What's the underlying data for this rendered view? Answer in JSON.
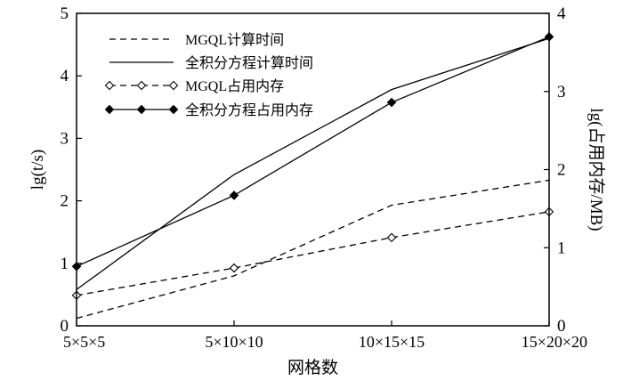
{
  "chart_data": {
    "type": "line",
    "categories": [
      "5×5×5",
      "5×10×10",
      "10×15×15",
      "15×20×20"
    ],
    "xlabel": "网格数",
    "ylabel_left": "lg(t/s)",
    "ylabel_right": "lg(占用内存/MB)",
    "ylim_left": [
      0,
      5
    ],
    "ylim_right": [
      0,
      4
    ],
    "yticks_left": [
      "0",
      "1",
      "2",
      "3",
      "4",
      "5"
    ],
    "yticks_right": [
      "0",
      "1",
      "2",
      "3",
      "4"
    ],
    "grid": false,
    "legend_position": "top-left",
    "series": [
      {
        "name": "MGQL计算时间",
        "axis": "left",
        "style": "dashed",
        "marker": "none",
        "values": [
          0.12,
          0.8,
          1.93,
          2.33
        ]
      },
      {
        "name": "全积分方程计算时间",
        "axis": "left",
        "style": "solid",
        "marker": "none",
        "values": [
          0.58,
          2.42,
          3.78,
          4.6
        ]
      },
      {
        "name": "MGQL占用内存",
        "axis": "right",
        "style": "dashed",
        "marker": "diamond-open",
        "values": [
          0.39,
          0.74,
          1.13,
          1.46
        ]
      },
      {
        "name": "全积分方程占用内存",
        "axis": "right",
        "style": "solid",
        "marker": "diamond-filled",
        "values": [
          0.76,
          1.67,
          2.86,
          3.7
        ]
      }
    ]
  }
}
